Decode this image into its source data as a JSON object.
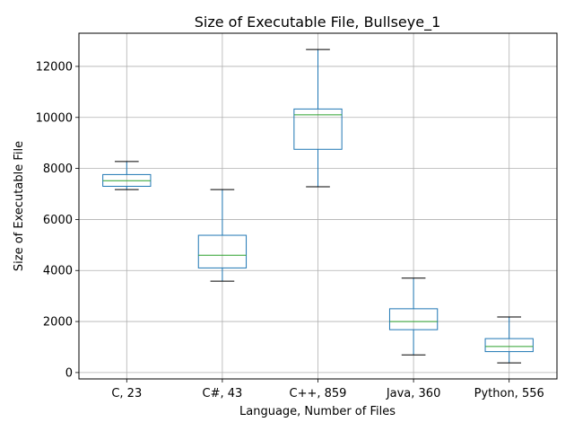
{
  "chart_data": {
    "type": "box",
    "title": "Size of Executable File, Bullseye_1",
    "xlabel": "Language, Number of Files",
    "ylabel": "Size of Executable File",
    "ylim": [
      -250,
      13300
    ],
    "yticks": [
      0,
      2000,
      4000,
      6000,
      8000,
      10000,
      12000
    ],
    "grid": true,
    "categories": [
      "C, 23",
      "C#, 43",
      "C++, 859",
      "Java, 360",
      "Python, 556"
    ],
    "boxes": [
      {
        "label": "C, 23",
        "whisker_low": 7170,
        "q1": 7300,
        "median": 7520,
        "q3": 7760,
        "whisker_high": 8270
      },
      {
        "label": "C#, 43",
        "whisker_low": 3580,
        "q1": 4100,
        "median": 4600,
        "q3": 5380,
        "whisker_high": 7170
      },
      {
        "label": "C++, 859",
        "whisker_low": 7280,
        "q1": 8750,
        "median": 10100,
        "q3": 10330,
        "whisker_high": 12660
      },
      {
        "label": "Java, 360",
        "whisker_low": 690,
        "q1": 1680,
        "median": 2000,
        "q3": 2500,
        "whisker_high": 3700
      },
      {
        "label": "Python, 556",
        "whisker_low": 380,
        "q1": 820,
        "median": 1020,
        "q3": 1330,
        "whisker_high": 2180
      }
    ],
    "colors": {
      "box": "#1f77b4",
      "median": "#2ca02c",
      "whisker_cap": "#000000",
      "grid": "#b0b0b0"
    }
  }
}
